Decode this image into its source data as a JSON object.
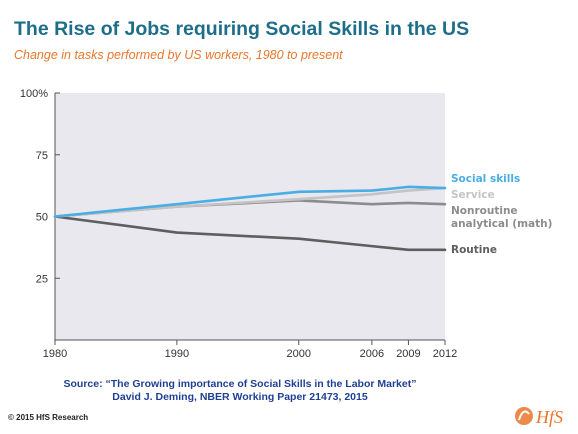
{
  "header": {
    "title": "The Rise of Jobs requiring Social Skills in the US",
    "subtitle": "Change in tasks performed by US workers, 1980 to present"
  },
  "chart_data": {
    "type": "line",
    "title": "The Rise of Jobs requiring Social Skills in the US",
    "subtitle": "Change in tasks performed by US workers, 1980 to present",
    "xlabel": "",
    "ylabel": "",
    "x": [
      1980,
      1990,
      2000,
      2006,
      2009,
      2012
    ],
    "x_tick_labels": [
      "1980",
      "1990",
      "2000",
      "2006",
      "2009",
      "2012"
    ],
    "y_tick_labels": [
      "100%",
      "75",
      "50",
      "25"
    ],
    "y_ticks": [
      100,
      75,
      50,
      25
    ],
    "ylim": [
      0,
      100
    ],
    "xlim": [
      1980,
      2012
    ],
    "grid": false,
    "legend": "direct labels at right",
    "series": [
      {
        "name": "Social skills",
        "color": "#4aaee4",
        "values": [
          50,
          55,
          60,
          60.5,
          62,
          61.5
        ]
      },
      {
        "name": "Service",
        "color": "#c4c4c4",
        "values": [
          50,
          54,
          57,
          59,
          60.5,
          61.5
        ]
      },
      {
        "name": "Nonroutine analytical (math)",
        "color": "#8c8c8c",
        "values": [
          50,
          54,
          56.5,
          55,
          55.5,
          55
        ]
      },
      {
        "name": "Routine",
        "color": "#5e5e5e",
        "values": [
          50,
          43.5,
          41,
          38,
          36.5,
          36.5
        ]
      }
    ],
    "labels": [
      {
        "lines": [
          "Social skills"
        ],
        "color": "#4aaee4"
      },
      {
        "lines": [
          "Service"
        ],
        "color": "#c4c4c4"
      },
      {
        "lines": [
          "Nonroutine",
          "analytical (math)"
        ],
        "color": "#8c8c8c"
      },
      {
        "lines": [
          "Routine"
        ],
        "color": "#5e5e5e"
      }
    ],
    "plot_background": "#e8e8ee"
  },
  "footer": {
    "source_line1": "Source: “The Growing importance of Social Skills in the Labor Market”",
    "source_line2": "David J. Deming, NBER Working Paper 21473, 2015",
    "copyright": "© 2015 HfS Research",
    "logo_text": "HfS",
    "logo_color": "#e8762c"
  }
}
